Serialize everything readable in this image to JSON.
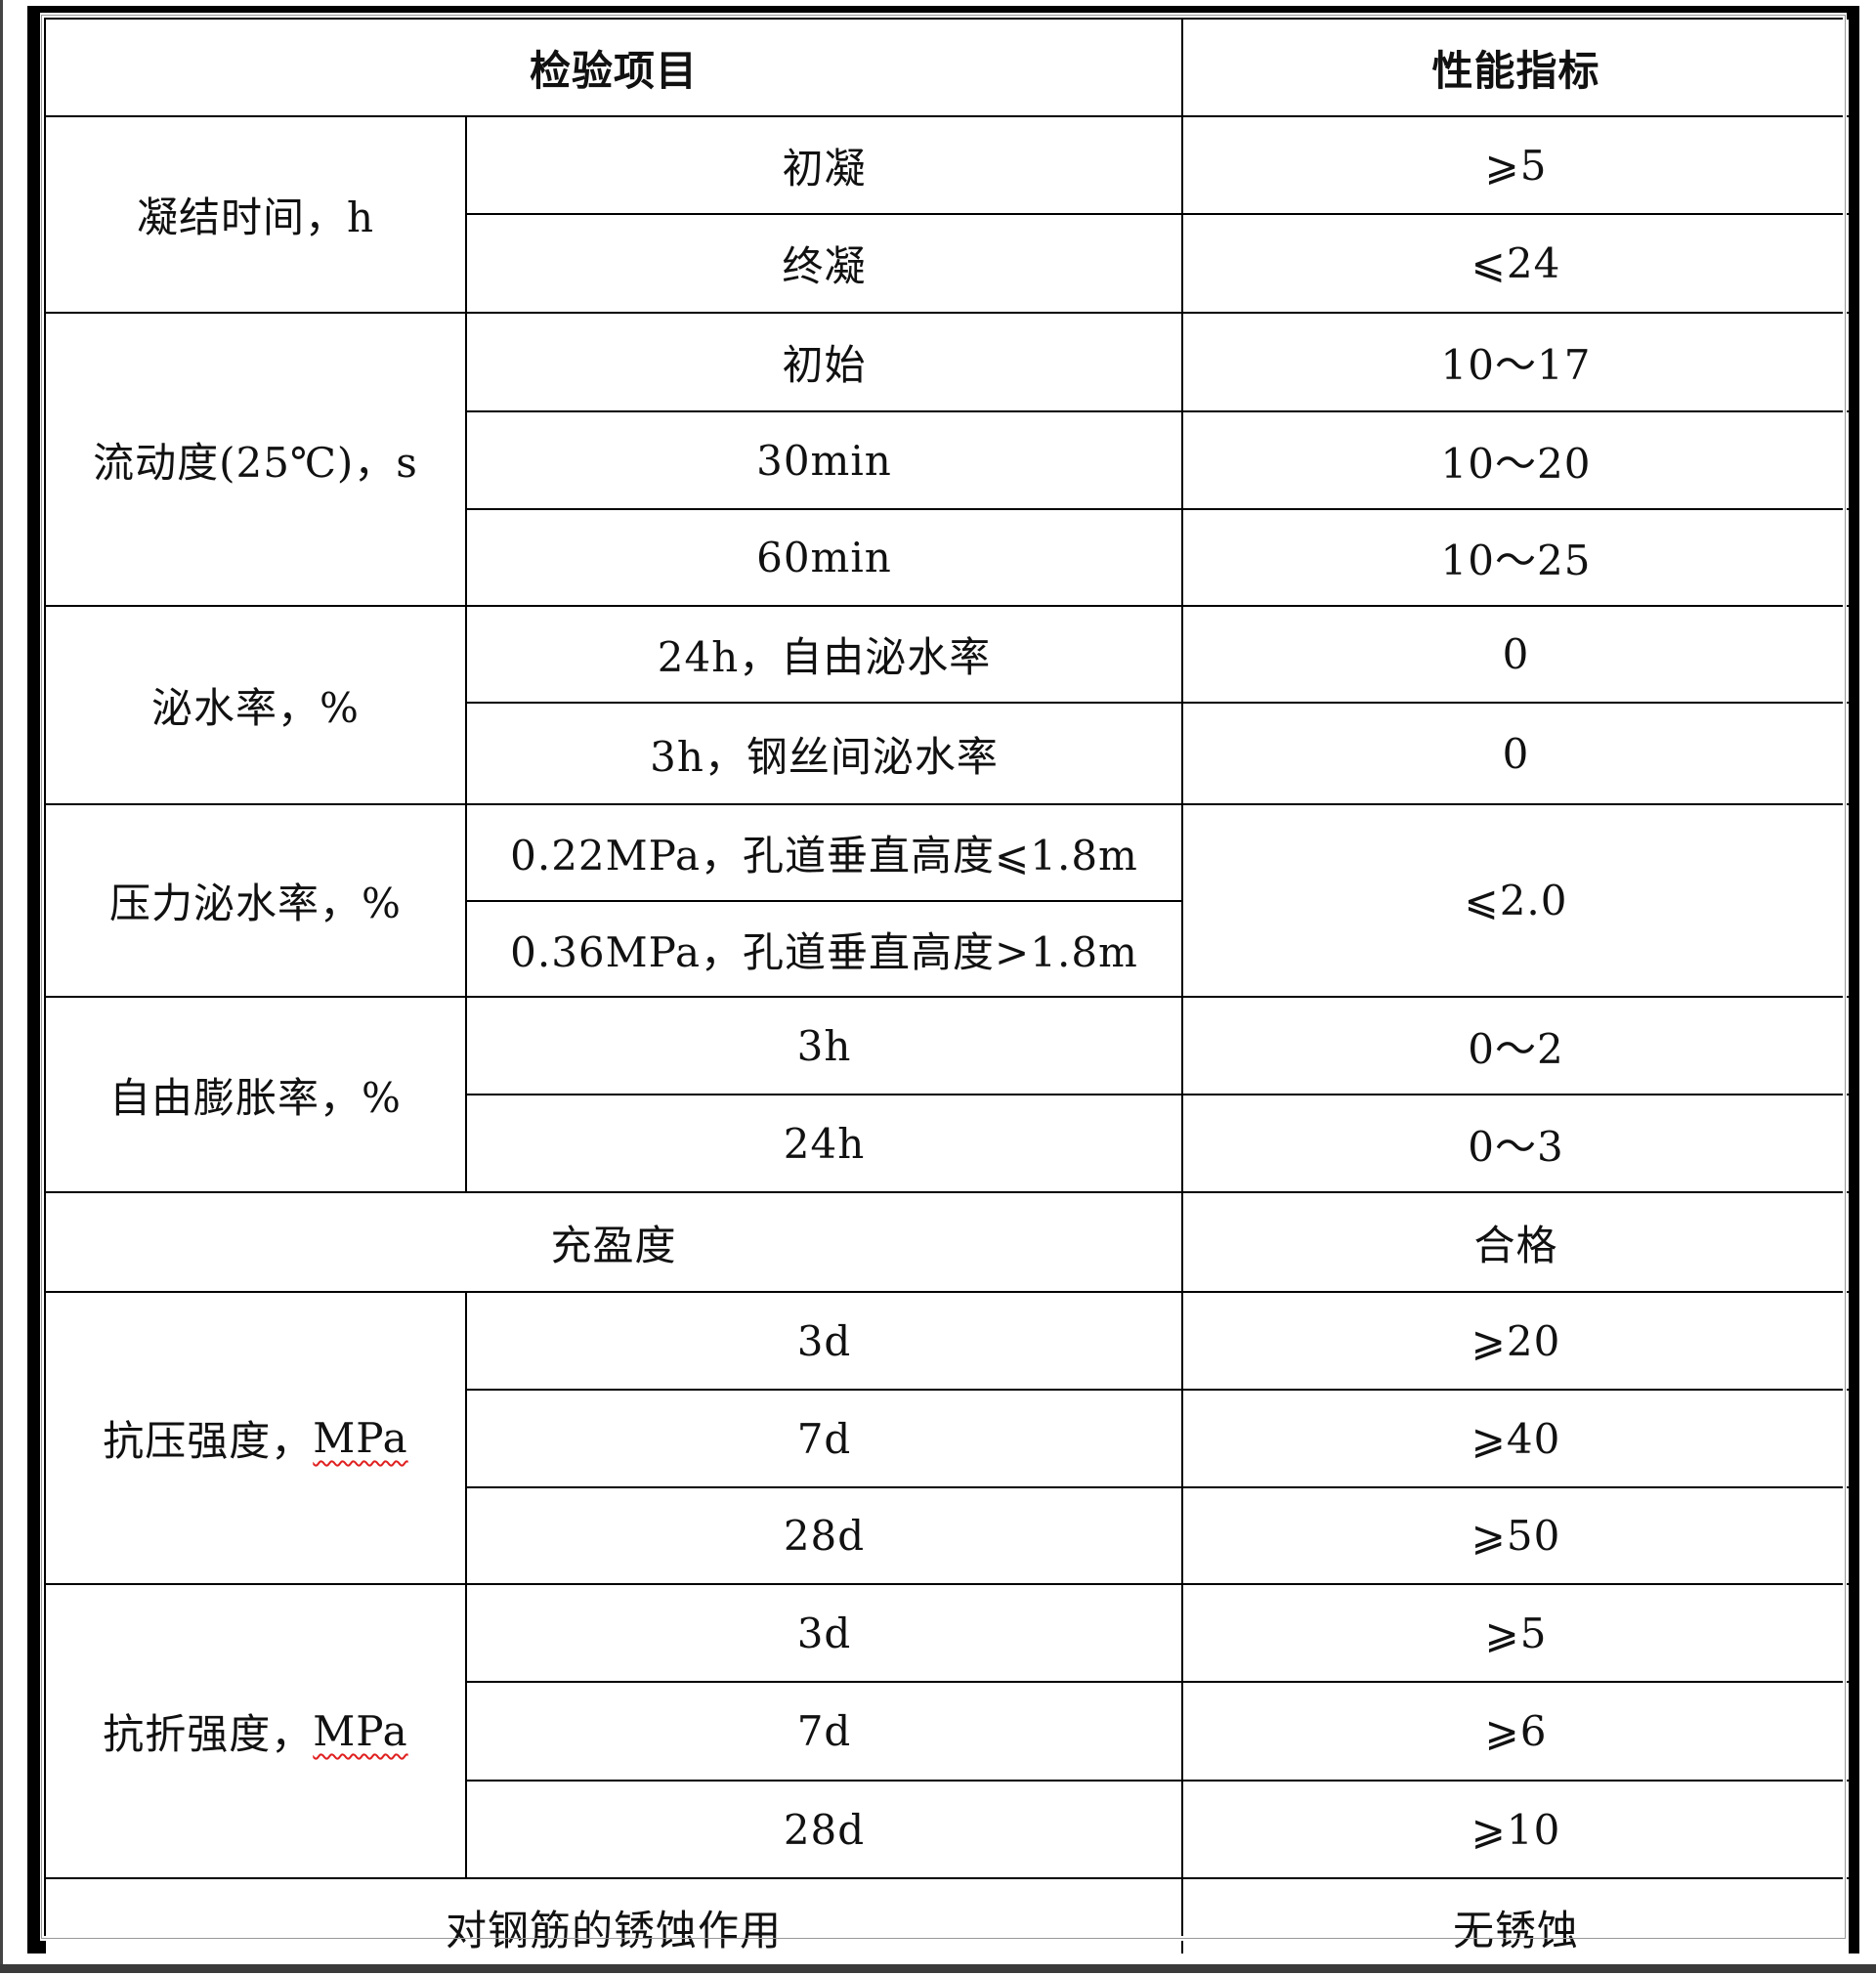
{
  "header": {
    "item": "检验项目",
    "spec": "性能指标"
  },
  "groups": {
    "setting_time": {
      "label": "凝结时间，h",
      "rows": [
        {
          "sub": "初凝",
          "value": "⩾5"
        },
        {
          "sub": "终凝",
          "value": "⩽24"
        }
      ]
    },
    "fluidity": {
      "label": "流动度(25℃)，s",
      "rows": [
        {
          "sub": "初始",
          "value": "10～17"
        },
        {
          "sub": "30min",
          "value": "10～20"
        },
        {
          "sub": "60min",
          "value": "10～25"
        }
      ]
    },
    "bleeding": {
      "label": "泌水率，%",
      "rows": [
        {
          "sub": "24h，自由泌水率",
          "value": "0"
        },
        {
          "sub": "3h，钢丝间泌水率",
          "value": "0"
        }
      ]
    },
    "pressure_bleeding": {
      "label": "压力泌水率，%",
      "rows": [
        {
          "sub": "0.22MPa，孔道垂直高度⩽1.8m"
        },
        {
          "sub": "0.36MPa，孔道垂直高度>1.8m"
        }
      ],
      "value": "⩽2.0"
    },
    "expansion": {
      "label": "自由膨胀率，%",
      "rows": [
        {
          "sub": "3h",
          "value": "0～2"
        },
        {
          "sub": "24h",
          "value": "0～3"
        }
      ]
    },
    "filling": {
      "label": "充盈度",
      "value": "合格"
    },
    "compressive": {
      "label": "抗压强度，",
      "unit": "MPa",
      "rows": [
        {
          "sub": "3d",
          "value": "⩾20"
        },
        {
          "sub": "7d",
          "value": "⩾40"
        },
        {
          "sub": "28d",
          "value": "⩾50"
        }
      ]
    },
    "flexural": {
      "label": "抗折强度，",
      "unit": "MPa",
      "rows": [
        {
          "sub": "3d",
          "value": "⩾5"
        },
        {
          "sub": "7d",
          "value": "⩾6"
        },
        {
          "sub": "28d",
          "value": "⩾10"
        }
      ]
    },
    "corrosion": {
      "label": "对钢筋的锈蚀作用",
      "value": "无锈蚀"
    }
  }
}
